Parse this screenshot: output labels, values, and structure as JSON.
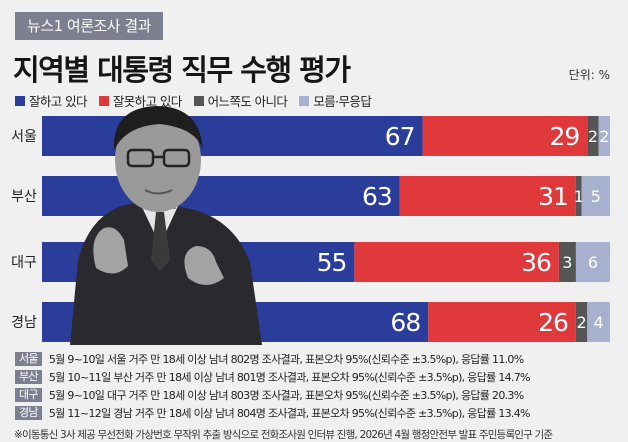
{
  "header": {
    "badge": "뉴스1 여론조사 결과",
    "unit": "단위: %"
  },
  "colors": {
    "positive": "#2b3d9a",
    "negative": "#e0393c",
    "neutral": "#555555",
    "unknown": "#a7b0cf"
  },
  "chart_data": {
    "type": "bar",
    "orientation": "horizontal",
    "stacked": true,
    "title": "지역별 대통령 직무 수행 평가",
    "categories": [
      "서울",
      "부산",
      "대구",
      "경남"
    ],
    "series": [
      {
        "name": "잘하고 있다",
        "values": [
          67,
          63,
          55,
          68
        ]
      },
      {
        "name": "잘못하고 있다",
        "values": [
          29,
          31,
          36,
          26
        ]
      },
      {
        "name": "어느쪽도 아니다",
        "values": [
          2,
          1,
          3,
          2
        ]
      },
      {
        "name": "모름·무응답",
        "values": [
          2,
          5,
          6,
          4
        ]
      }
    ],
    "xlim": [
      0,
      100
    ],
    "legend": "top-left"
  },
  "notes": [
    {
      "tag": "서울",
      "text": "5월 9~10일 서울 거주 만 18세 이상 남녀 802명 조사결과, 표본오차 95%(신뢰수준 ±3.5%p), 응답률 11.0%"
    },
    {
      "tag": "부산",
      "text": "5월 10~11일 부산 거주 만 18세 이상 남녀 801명 조사결과, 표본오차 95%(신뢰수준 ±3.5%p), 응답률 14.7%"
    },
    {
      "tag": "대구",
      "text": "5월 9~10일 대구 거주 만 18세 이상 남녀 803명 조사결과, 표본오차 95%(신뢰수준 ±3.5%p), 응답률 20.3%"
    },
    {
      "tag": "경남",
      "text": "5월 11~12일 경남 거주 만 18세 이상 남녀 804명 조사결과, 표본오차 95%(신뢰수준 ±3.5%p), 응답률 13.4%"
    }
  ],
  "footnote": "※이동통신 3사 제공 무선전화 가상번호 무작위 추출 방식으로 전화조사원 인터뷰 진행, 2026년 4월 행정안전부 발표 주민등록인구 기준"
}
